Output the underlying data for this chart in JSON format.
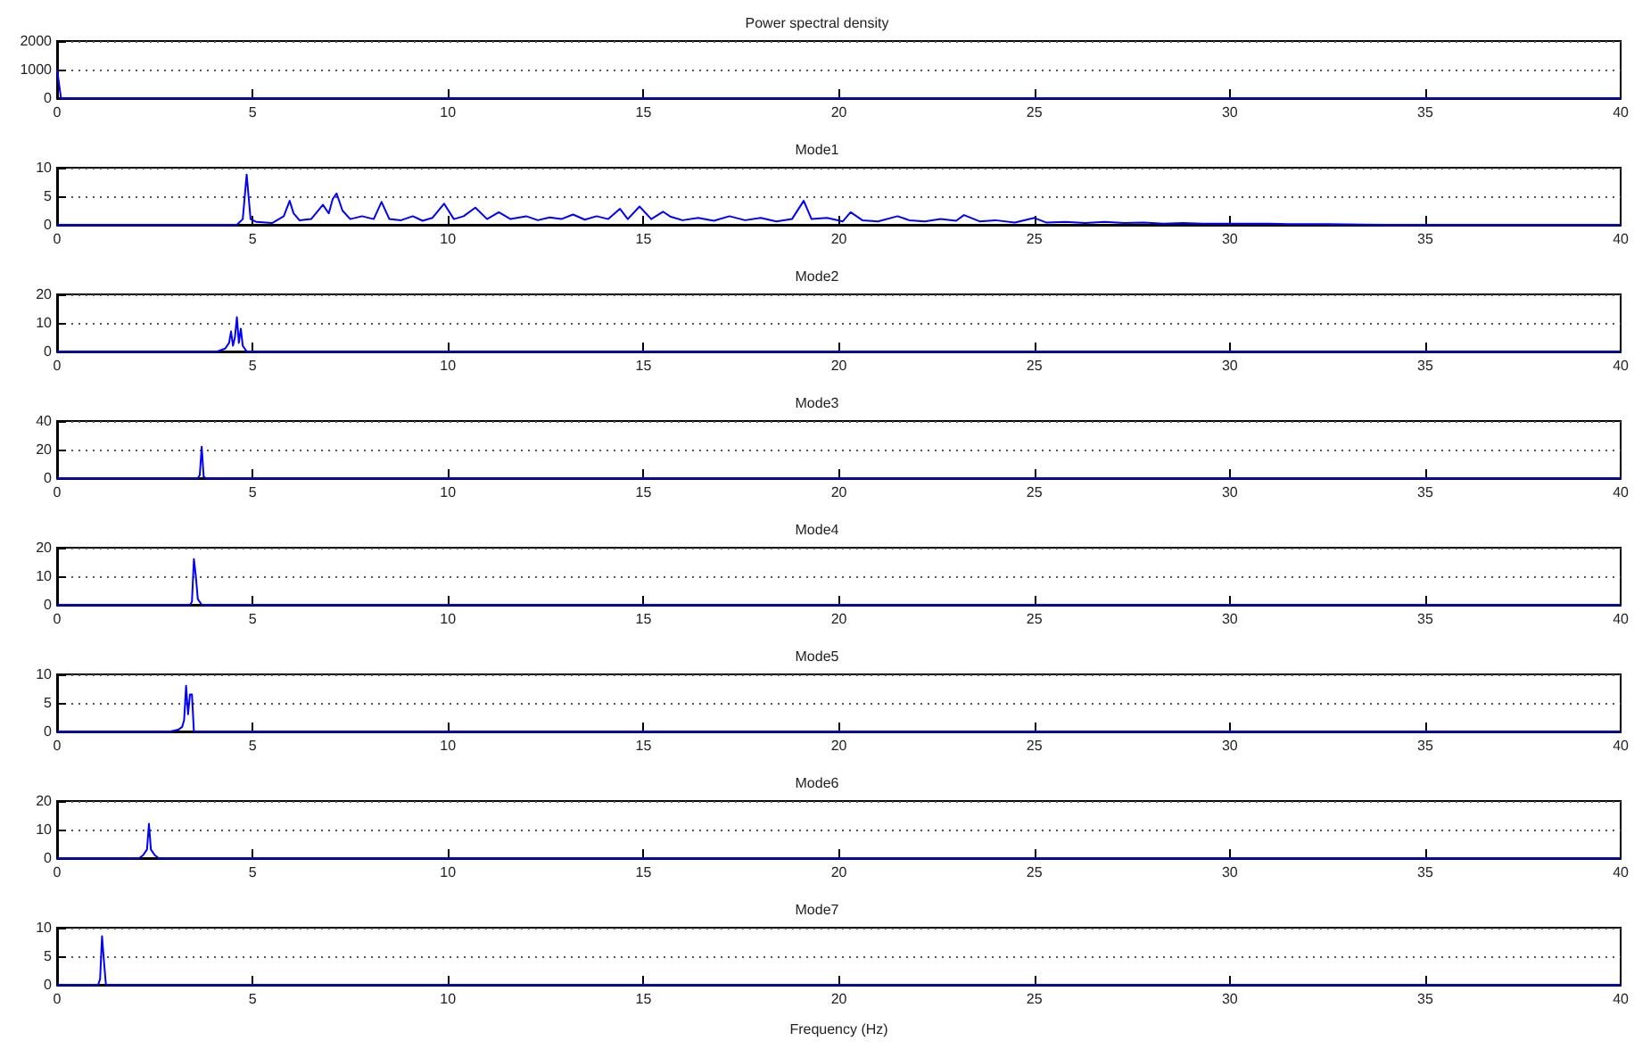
{
  "chart_data": [
    {
      "type": "line",
      "title": "Power spectral density",
      "x": [
        0,
        0.1,
        1,
        40
      ],
      "series": [
        {
          "color": "#0000ff",
          "values": [
            1000,
            0,
            0,
            0
          ]
        }
      ],
      "xlim": [
        0,
        40
      ],
      "xticks": [
        0,
        5,
        10,
        15,
        20,
        25,
        30,
        35,
        40
      ],
      "ylim": [
        0,
        2000
      ],
      "yticks": [
        0,
        1000,
        2000
      ],
      "grid": "y",
      "marker": "none"
    },
    {
      "type": "line",
      "title": "Mode1",
      "x": [
        0,
        4.6,
        4.75,
        4.85,
        4.95,
        5.1,
        5.5,
        5.8,
        5.95,
        6.05,
        6.2,
        6.5,
        6.8,
        6.95,
        7.05,
        7.15,
        7.3,
        7.5,
        7.8,
        8.1,
        8.3,
        8.5,
        8.8,
        9.1,
        9.35,
        9.6,
        9.9,
        10.15,
        10.4,
        10.7,
        11.0,
        11.3,
        11.6,
        12.0,
        12.3,
        12.6,
        12.9,
        13.2,
        13.5,
        13.8,
        14.1,
        14.4,
        14.6,
        14.9,
        15.2,
        15.5,
        15.7,
        16.0,
        16.4,
        16.8,
        17.2,
        17.6,
        18.0,
        18.4,
        18.8,
        19.1,
        19.3,
        19.7,
        20.1,
        20.3,
        20.6,
        21.0,
        21.5,
        21.8,
        22.2,
        22.6,
        23.0,
        23.2,
        23.6,
        24.0,
        24.5,
        25.0,
        25.3,
        25.8,
        26.3,
        26.8,
        27.3,
        27.8,
        28.3,
        28.8,
        29.3,
        29.8,
        30.3,
        31.0,
        31.5,
        32.5,
        34,
        36,
        38,
        40
      ],
      "series": [
        {
          "color": "#0000ff",
          "values": [
            0,
            0,
            1,
            8.8,
            1,
            0.5,
            0.3,
            1.5,
            4.2,
            2,
            0.8,
            1,
            3.5,
            2,
            4.5,
            5.5,
            2.5,
            1,
            1.5,
            1,
            4,
            1,
            0.8,
            1.5,
            0.7,
            1.2,
            3.7,
            1,
            1.5,
            3,
            1,
            2.2,
            1,
            1.5,
            0.8,
            1.3,
            1,
            1.8,
            0.9,
            1.5,
            1,
            2.8,
            1,
            3.2,
            1,
            2.3,
            1.4,
            0.8,
            1.2,
            0.7,
            1.5,
            0.8,
            1.2,
            0.6,
            1,
            4.2,
            1,
            1.2,
            0.6,
            2.2,
            0.8,
            0.6,
            1.5,
            0.8,
            0.6,
            1,
            0.7,
            1.7,
            0.6,
            0.8,
            0.4,
            1.2,
            0.4,
            0.5,
            0.3,
            0.5,
            0.3,
            0.4,
            0.2,
            0.3,
            0.2,
            0.2,
            0.2,
            0.2,
            0.1,
            0.1,
            0,
            0,
            0,
            0
          ]
        }
      ],
      "xlim": [
        0,
        40
      ],
      "xticks": [
        0,
        5,
        10,
        15,
        20,
        25,
        30,
        35,
        40
      ],
      "ylim": [
        0,
        10
      ],
      "yticks": [
        0,
        5,
        10
      ],
      "grid": "y",
      "marker": "none"
    },
    {
      "type": "line",
      "title": "Mode2",
      "x": [
        0,
        4.1,
        4.3,
        4.4,
        4.45,
        4.5,
        4.55,
        4.6,
        4.65,
        4.7,
        4.75,
        4.85,
        40
      ],
      "series": [
        {
          "color": "#0000ff",
          "values": [
            0,
            0,
            1,
            3,
            7,
            2,
            5,
            12,
            3,
            8,
            2,
            0,
            0
          ]
        }
      ],
      "xlim": [
        0,
        40
      ],
      "xticks": [
        0,
        5,
        10,
        15,
        20,
        25,
        30,
        35,
        40
      ],
      "ylim": [
        0,
        20
      ],
      "yticks": [
        0,
        10,
        20
      ],
      "grid": "y",
      "marker": "none"
    },
    {
      "type": "line",
      "title": "Mode3",
      "x": [
        0,
        3.6,
        3.65,
        3.7,
        3.75,
        3.8,
        40
      ],
      "series": [
        {
          "color": "#0000ff",
          "values": [
            0,
            0,
            2,
            22,
            1,
            0,
            0
          ]
        }
      ],
      "xlim": [
        0,
        40
      ],
      "xticks": [
        0,
        5,
        10,
        15,
        20,
        25,
        30,
        35,
        40
      ],
      "ylim": [
        0,
        40
      ],
      "yticks": [
        0,
        20,
        40
      ],
      "grid": "y",
      "marker": "none"
    },
    {
      "type": "line",
      "title": "Mode4",
      "x": [
        0,
        3.4,
        3.45,
        3.5,
        3.55,
        3.6,
        3.7,
        40
      ],
      "series": [
        {
          "color": "#0000ff",
          "values": [
            0,
            0,
            1,
            16,
            10,
            2,
            0,
            0
          ]
        }
      ],
      "xlim": [
        0,
        40
      ],
      "xticks": [
        0,
        5,
        10,
        15,
        20,
        25,
        30,
        35,
        40
      ],
      "ylim": [
        0,
        20
      ],
      "yticks": [
        0,
        10,
        20
      ],
      "grid": "y",
      "marker": "none"
    },
    {
      "type": "line",
      "title": "Mode5",
      "x": [
        0,
        2.9,
        3.1,
        3.2,
        3.25,
        3.3,
        3.35,
        3.4,
        3.45,
        3.5,
        40
      ],
      "series": [
        {
          "color": "#0000ff",
          "values": [
            0,
            0,
            0.3,
            0.8,
            2,
            8,
            3,
            6.5,
            6.5,
            0,
            0
          ]
        }
      ],
      "xlim": [
        0,
        40
      ],
      "xticks": [
        0,
        5,
        10,
        15,
        20,
        25,
        30,
        35,
        40
      ],
      "ylim": [
        0,
        10
      ],
      "yticks": [
        0,
        5,
        10
      ],
      "grid": "y",
      "marker": "none"
    },
    {
      "type": "line",
      "title": "Mode6",
      "x": [
        0,
        2.1,
        2.2,
        2.3,
        2.35,
        2.4,
        2.5,
        2.6,
        40
      ],
      "series": [
        {
          "color": "#0000ff",
          "values": [
            0,
            0,
            1,
            3,
            12,
            3,
            1,
            0,
            0
          ]
        }
      ],
      "xlim": [
        0,
        40
      ],
      "xticks": [
        0,
        5,
        10,
        15,
        20,
        25,
        30,
        35,
        40
      ],
      "ylim": [
        0,
        20
      ],
      "yticks": [
        0,
        10,
        20
      ],
      "grid": "y",
      "marker": "none"
    },
    {
      "type": "line",
      "title": "Mode7",
      "xlabel": "Frequency (Hz)",
      "x": [
        0,
        1.05,
        1.1,
        1.15,
        1.2,
        1.25,
        40
      ],
      "series": [
        {
          "color": "#0000ff",
          "values": [
            0,
            0,
            1,
            8.5,
            4,
            0,
            0
          ]
        }
      ],
      "xlim": [
        0,
        40
      ],
      "xticks": [
        0,
        5,
        10,
        15,
        20,
        25,
        30,
        35,
        40
      ],
      "ylim": [
        0,
        10
      ],
      "yticks": [
        0,
        5,
        10
      ],
      "grid": "y",
      "marker": "none"
    }
  ]
}
